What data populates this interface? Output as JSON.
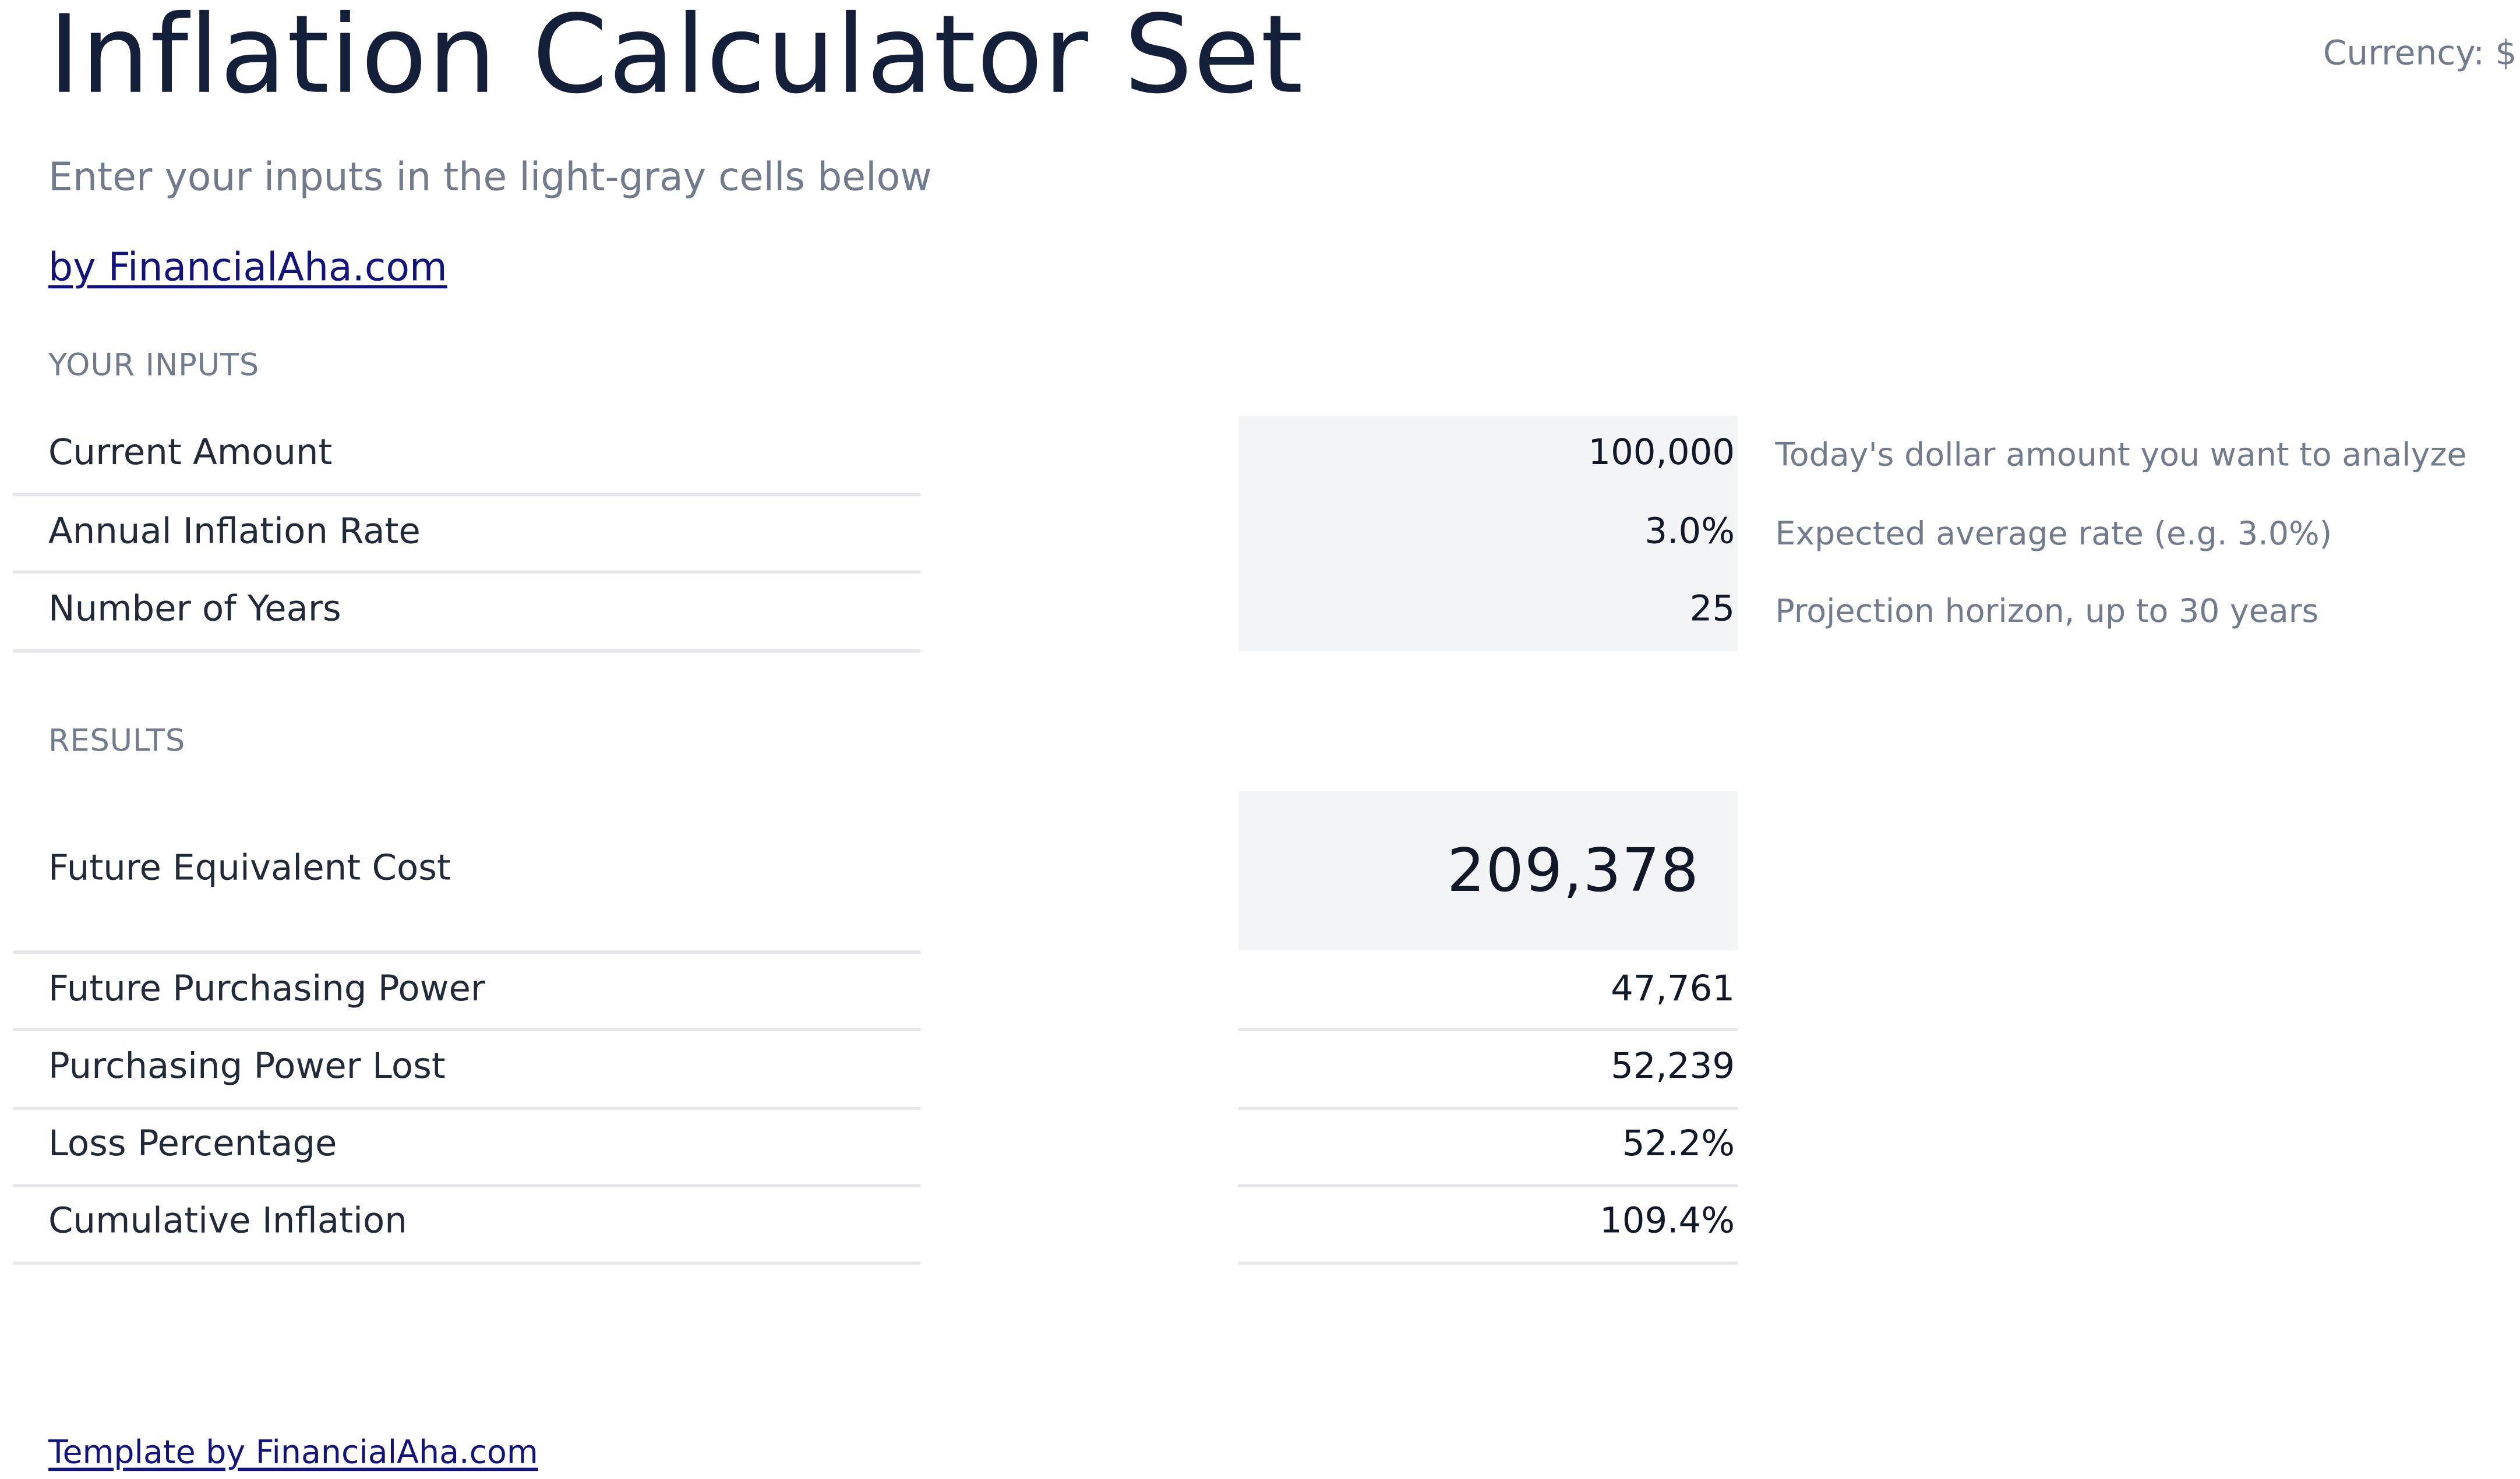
{
  "header": {
    "title": "Inflation Calculator Set",
    "currency": "Currency: $",
    "subtitle": "Enter your inputs in the light-gray cells below",
    "brand_link": "by FinancialAha.com"
  },
  "inputs": {
    "section_label": "YOUR INPUTS",
    "rows": [
      {
        "label": "Current Amount",
        "value": "100,000",
        "hint": "Today's dollar amount you want to analyze"
      },
      {
        "label": "Annual Inflation Rate",
        "value": "3.0%",
        "hint": "Expected average rate (e.g. 3.0%)"
      },
      {
        "label": "Number of Years",
        "value": "25",
        "hint": "Projection horizon, up to 30 years"
      }
    ]
  },
  "results": {
    "section_label": "RESULTS",
    "headline": {
      "label": "Future Equivalent Cost",
      "value": "209,378"
    },
    "rows": [
      {
        "label": "Future Purchasing Power",
        "value": "47,761"
      },
      {
        "label": "Purchasing Power Lost",
        "value": "52,239"
      },
      {
        "label": "Loss Percentage",
        "value": "52.2%"
      },
      {
        "label": "Cumulative Inflation",
        "value": "109.4%"
      }
    ]
  },
  "footer": {
    "link": "Template by FinancialAha.com"
  },
  "colors": {
    "title": "#141f3a",
    "muted": "#727b8c",
    "link": "#131380",
    "input_fill": "#f3f4f6",
    "divider": "#e5e7eb"
  }
}
